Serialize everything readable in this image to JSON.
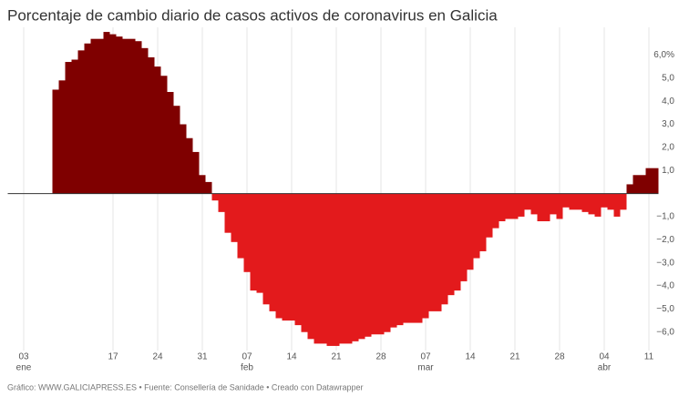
{
  "chart_data": {
    "type": "bar",
    "title": "Porcentaje de cambio diario de casos activos de coronavirus en Galicia",
    "footer": "Gráfico: WWW.GALICIAPRESS.ES • Fuente: Consellería de Sanidade • Creado con Datawrapper",
    "categories": [
      null,
      null,
      "03",
      null,
      null,
      null,
      null,
      null,
      null,
      null,
      null,
      null,
      null,
      null,
      null,
      null,
      "17",
      null,
      null,
      null,
      null,
      null,
      null,
      "24",
      null,
      null,
      null,
      null,
      null,
      null,
      "31",
      null,
      null,
      null,
      null,
      null,
      null,
      "07",
      null,
      null,
      null,
      null,
      null,
      null,
      "14",
      null,
      null,
      null,
      null,
      null,
      null,
      "21",
      null,
      null,
      null,
      null,
      null,
      null,
      "28",
      null,
      null,
      null,
      null,
      null,
      null,
      "07",
      null,
      null,
      null,
      null,
      null,
      null,
      "14",
      null,
      null,
      null,
      null,
      null,
      null,
      "21",
      null,
      null,
      null,
      null,
      null,
      null,
      "28",
      null,
      null,
      null,
      null,
      null,
      null,
      "04",
      null,
      null,
      null,
      null,
      null,
      null,
      "11",
      null
    ],
    "months": [
      null,
      null,
      "ene",
      null,
      null,
      null,
      null,
      null,
      null,
      null,
      null,
      null,
      null,
      null,
      null,
      null,
      null,
      null,
      null,
      null,
      null,
      null,
      null,
      null,
      null,
      null,
      null,
      null,
      null,
      null,
      null,
      null,
      null,
      null,
      null,
      null,
      null,
      "feb",
      null,
      null,
      null,
      null,
      null,
      null,
      null,
      null,
      null,
      null,
      null,
      null,
      null,
      null,
      null,
      null,
      null,
      null,
      null,
      null,
      null,
      null,
      null,
      null,
      null,
      null,
      null,
      "mar",
      null,
      null,
      null,
      null,
      null,
      null,
      null,
      null,
      null,
      null,
      null,
      null,
      null,
      null,
      null,
      null,
      null,
      null,
      null,
      null,
      null,
      null,
      null,
      null,
      null,
      null,
      null,
      "abr",
      null,
      null,
      null,
      null,
      null,
      null,
      null,
      null
    ],
    "values": [
      0,
      0,
      0,
      0,
      0,
      0,
      0,
      4.5,
      4.9,
      5.7,
      5.8,
      6.2,
      6.5,
      6.7,
      6.7,
      7.0,
      6.9,
      6.8,
      6.7,
      6.7,
      6.6,
      6.3,
      5.9,
      5.5,
      5.1,
      4.4,
      3.8,
      3.0,
      2.4,
      1.8,
      0.8,
      0.5,
      -0.3,
      -0.8,
      -1.7,
      -2.1,
      -2.8,
      -3.4,
      -4.2,
      -4.3,
      -4.8,
      -5.1,
      -5.4,
      -5.5,
      -5.5,
      -5.7,
      -6.0,
      -6.3,
      -6.5,
      -6.5,
      -6.6,
      -6.6,
      -6.5,
      -6.5,
      -6.4,
      -6.3,
      -6.2,
      -6.1,
      -6.1,
      -6.0,
      -5.8,
      -5.7,
      -5.6,
      -5.6,
      -5.6,
      -5.4,
      -5.1,
      -5.1,
      -4.8,
      -4.4,
      -4.2,
      -3.8,
      -3.3,
      -2.8,
      -2.5,
      -1.9,
      -1.5,
      -1.2,
      -1.1,
      -1.1,
      -1.0,
      -0.7,
      -0.9,
      -1.2,
      -1.2,
      -0.9,
      -1.1,
      -0.6,
      -0.7,
      -0.7,
      -0.8,
      -0.9,
      -1.0,
      -0.6,
      -0.7,
      -1.0,
      -0.7,
      0.4,
      0.8,
      0.8,
      1.1,
      1.1
    ],
    "positive_color": "#7f0000",
    "negative_color": "#e31a1c",
    "ylim": [
      -6.8,
      7.2
    ],
    "yticks": [
      {
        "value": 6,
        "label": "6,0%"
      },
      {
        "value": 5,
        "label": "5,0"
      },
      {
        "value": 4,
        "label": "4,0"
      },
      {
        "value": 3,
        "label": "3,0"
      },
      {
        "value": 2,
        "label": "2,0"
      },
      {
        "value": 1,
        "label": "1,0"
      },
      {
        "value": -1,
        "label": "−1,0"
      },
      {
        "value": -2,
        "label": "−2,0"
      },
      {
        "value": -3,
        "label": "−3,0"
      },
      {
        "value": -4,
        "label": "−4,0"
      },
      {
        "value": -5,
        "label": "−5,0"
      },
      {
        "value": -6,
        "label": "−6,0"
      }
    ]
  }
}
